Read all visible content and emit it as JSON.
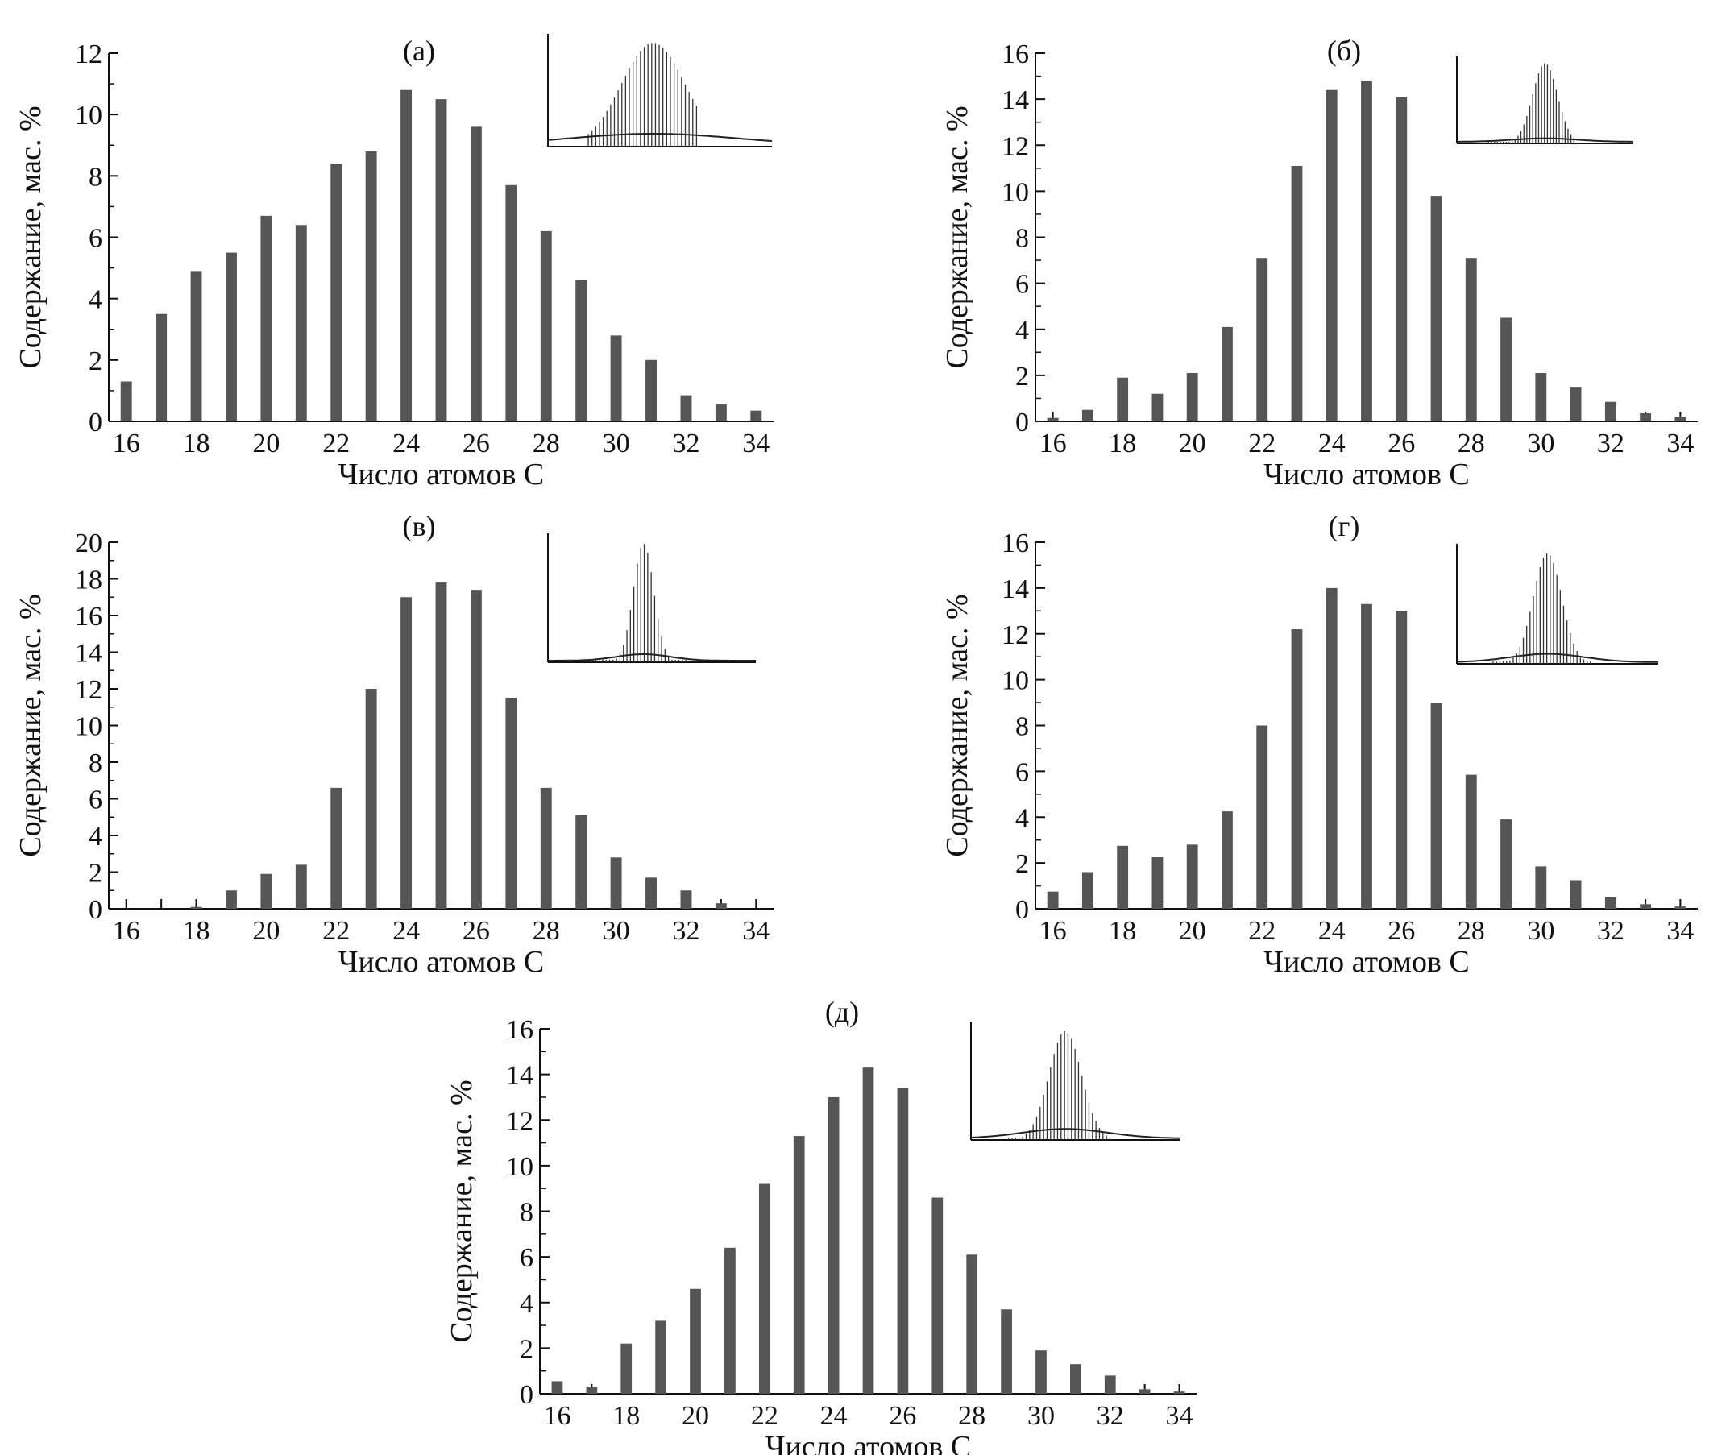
{
  "chart_data": [
    {
      "type": "bar",
      "panel_label": "(а)",
      "xlabel": "Число атомов С",
      "ylabel": "Содержание, мас. %",
      "ylim": [
        0,
        12
      ],
      "yticks": [
        0,
        2,
        4,
        6,
        8,
        10,
        12
      ],
      "xticks": [
        16,
        18,
        20,
        22,
        24,
        26,
        28,
        30,
        32,
        34
      ],
      "x": [
        16,
        17,
        18,
        19,
        20,
        21,
        22,
        23,
        24,
        25,
        26,
        27,
        28,
        29,
        30,
        31,
        32,
        33,
        34
      ],
      "values": [
        1.3,
        3.5,
        4.9,
        5.5,
        6.7,
        6.4,
        8.4,
        8.8,
        10.8,
        10.5,
        9.6,
        7.7,
        6.2,
        4.6,
        2.8,
        2.0,
        0.85,
        0.55,
        0.35
      ],
      "inset": "chromatogram",
      "inset_shape": {
        "center": 0.47,
        "width": 0.2,
        "baseline": 0.1,
        "noise": 0.25
      }
    },
    {
      "type": "bar",
      "panel_label": "(б)",
      "xlabel": "Число атомов С",
      "ylabel": "Содержание, мас. %",
      "ylim": [
        0,
        16
      ],
      "yticks": [
        0,
        2,
        4,
        6,
        8,
        10,
        12,
        14,
        16
      ],
      "xticks": [
        16,
        18,
        20,
        22,
        24,
        26,
        28,
        30,
        32,
        34
      ],
      "x": [
        16,
        17,
        18,
        19,
        20,
        21,
        22,
        23,
        24,
        25,
        26,
        27,
        28,
        29,
        30,
        31,
        32,
        33,
        34
      ],
      "values": [
        0.15,
        0.5,
        1.9,
        1.2,
        2.1,
        4.1,
        7.1,
        11.1,
        14.4,
        14.8,
        14.1,
        9.8,
        7.1,
        4.5,
        2.1,
        1.5,
        0.85,
        0.35,
        0.2
      ],
      "inset": "chromatogram",
      "inset_shape": {
        "center": 0.5,
        "width": 0.1,
        "baseline": 0.04,
        "noise": 0.08
      }
    },
    {
      "type": "bar",
      "panel_label": "(в)",
      "xlabel": "Число атомов С",
      "ylabel": "Содержание, мас. %",
      "ylim": [
        0,
        20
      ],
      "yticks": [
        0,
        2,
        4,
        6,
        8,
        10,
        12,
        14,
        16,
        18,
        20
      ],
      "xticks": [
        16,
        18,
        20,
        22,
        24,
        26,
        28,
        30,
        32,
        34
      ],
      "x": [
        16,
        17,
        18,
        19,
        20,
        21,
        22,
        23,
        24,
        25,
        26,
        27,
        28,
        29,
        30,
        31,
        32,
        33,
        34
      ],
      "values": [
        0,
        0,
        0.1,
        1.0,
        1.9,
        2.4,
        6.6,
        12.0,
        17.0,
        17.8,
        17.4,
        11.5,
        6.6,
        5.1,
        2.8,
        1.7,
        1.0,
        0.3,
        0
      ],
      "inset": "chromatogram",
      "inset_shape": {
        "center": 0.46,
        "width": 0.07,
        "baseline": 0.05,
        "noise": 0.12
      }
    },
    {
      "type": "bar",
      "panel_label": "(г)",
      "xlabel": "Число атомов С",
      "ylabel": "Содержание, мас. %",
      "ylim": [
        0,
        16
      ],
      "yticks": [
        0,
        2,
        4,
        6,
        8,
        10,
        12,
        14,
        16
      ],
      "xticks": [
        16,
        18,
        20,
        22,
        24,
        26,
        28,
        30,
        32,
        34
      ],
      "x": [
        16,
        17,
        18,
        19,
        20,
        21,
        22,
        23,
        24,
        25,
        26,
        27,
        28,
        29,
        30,
        31,
        32,
        33,
        34
      ],
      "values": [
        0.75,
        1.6,
        2.75,
        2.25,
        2.8,
        4.25,
        8.0,
        12.2,
        14.0,
        13.3,
        13.0,
        9.0,
        5.85,
        3.9,
        1.85,
        1.25,
        0.5,
        0.2,
        0.1
      ],
      "inset": "chromatogram",
      "inset_shape": {
        "center": 0.45,
        "width": 0.1,
        "baseline": 0.07,
        "noise": 0.15
      }
    },
    {
      "type": "bar",
      "panel_label": "(д)",
      "xlabel": "Число атомов С",
      "ylabel": "Содержание, мас. %",
      "ylim": [
        0,
        16
      ],
      "yticks": [
        0,
        2,
        4,
        6,
        8,
        10,
        12,
        14,
        16
      ],
      "xticks": [
        16,
        18,
        20,
        22,
        24,
        26,
        28,
        30,
        32,
        34
      ],
      "x": [
        16,
        17,
        18,
        19,
        20,
        21,
        22,
        23,
        24,
        25,
        26,
        27,
        28,
        29,
        30,
        31,
        32,
        33,
        34
      ],
      "values": [
        0.55,
        0.3,
        2.2,
        3.2,
        4.6,
        6.4,
        9.2,
        11.3,
        13.0,
        14.3,
        13.4,
        8.6,
        6.1,
        3.7,
        1.9,
        1.3,
        0.8,
        0.2,
        0.1
      ],
      "inset": "chromatogram",
      "inset_shape": {
        "center": 0.45,
        "width": 0.11,
        "baseline": 0.08,
        "noise": 0.16
      }
    }
  ]
}
